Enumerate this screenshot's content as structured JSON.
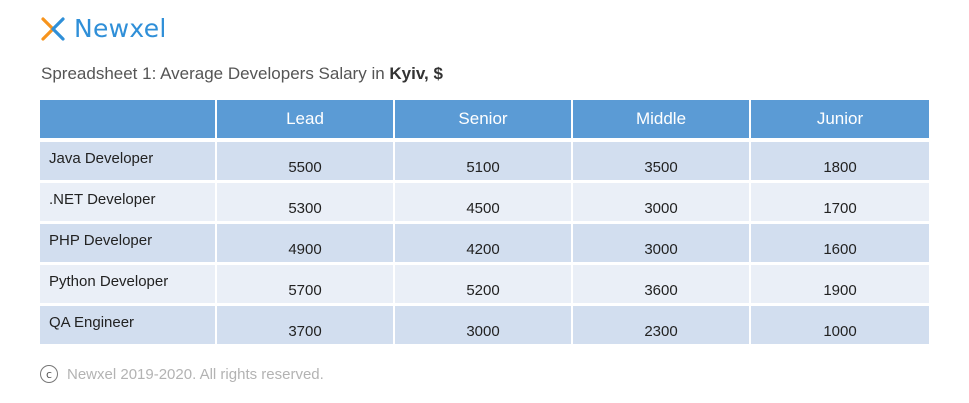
{
  "brand": {
    "name": "Newxel",
    "accent_orange": "#f7941d",
    "accent_blue": "#2f8fd8"
  },
  "caption": {
    "prefix": "Spreadsheet 1: Average Developers Salary in ",
    "bold": "Kyiv, $"
  },
  "chart_data": {
    "type": "table",
    "columns": [
      "",
      "Lead",
      "Senior",
      "Middle",
      "Junior"
    ],
    "rows": [
      {
        "label": "Java Developer",
        "values": [
          5500,
          5100,
          3500,
          1800
        ]
      },
      {
        "label": ".NET Developer",
        "values": [
          5300,
          4500,
          3000,
          1700
        ]
      },
      {
        "label": "PHP Developer",
        "values": [
          4900,
          4200,
          3000,
          1600
        ]
      },
      {
        "label": "Python Developer",
        "values": [
          5700,
          5200,
          3600,
          1900
        ]
      },
      {
        "label": "QA Engineer",
        "values": [
          3700,
          3000,
          2300,
          1000
        ]
      }
    ],
    "header_color": "#5b9bd5",
    "row_colors": [
      "#d2deef",
      "#eaeff7"
    ]
  },
  "footer": {
    "icon_glyph": "c",
    "icon": "copyright-icon",
    "text": "Newxel 2019-2020. All rights reserved."
  }
}
